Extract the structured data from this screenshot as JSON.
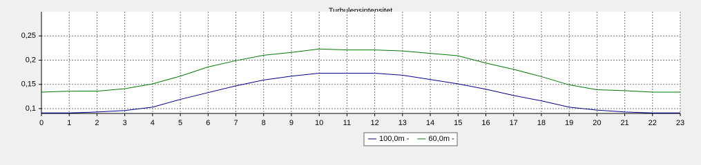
{
  "chart_data": {
    "type": "line",
    "title": "Turbulensintensitet",
    "x": [
      0,
      1,
      2,
      3,
      4,
      5,
      6,
      7,
      8,
      9,
      10,
      11,
      12,
      13,
      14,
      15,
      16,
      17,
      18,
      19,
      20,
      21,
      22,
      23
    ],
    "xlim": [
      0,
      23
    ],
    "xticks": [
      0,
      1,
      2,
      3,
      4,
      5,
      6,
      7,
      8,
      9,
      10,
      11,
      12,
      13,
      14,
      15,
      16,
      17,
      18,
      19,
      20,
      21,
      22,
      23
    ],
    "ylim": [
      0.09,
      0.3
    ],
    "yticks": [
      {
        "value": 0.1,
        "label": "0,1"
      },
      {
        "value": 0.15,
        "label": "0,15"
      },
      {
        "value": 0.2,
        "label": "0,2"
      },
      {
        "value": 0.25,
        "label": "0,25"
      }
    ],
    "grid": true,
    "legend": "bottom",
    "series": [
      {
        "name": "100,0m -",
        "color": "#00008b",
        "values": [
          0.091,
          0.091,
          0.093,
          0.096,
          0.103,
          0.119,
          0.133,
          0.147,
          0.159,
          0.167,
          0.173,
          0.173,
          0.173,
          0.169,
          0.16,
          0.151,
          0.14,
          0.127,
          0.116,
          0.103,
          0.097,
          0.093,
          0.091,
          0.091
        ]
      },
      {
        "name": "60,0m -",
        "color": "#007800",
        "values": [
          0.134,
          0.136,
          0.136,
          0.141,
          0.151,
          0.167,
          0.186,
          0.199,
          0.21,
          0.216,
          0.223,
          0.221,
          0.221,
          0.219,
          0.214,
          0.209,
          0.194,
          0.181,
          0.166,
          0.149,
          0.139,
          0.137,
          0.134,
          0.134
        ]
      }
    ]
  }
}
